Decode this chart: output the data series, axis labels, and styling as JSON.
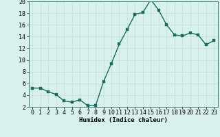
{
  "x": [
    0,
    1,
    2,
    3,
    4,
    5,
    6,
    7,
    8,
    9,
    10,
    11,
    12,
    13,
    14,
    15,
    16,
    17,
    18,
    19,
    20,
    21,
    22,
    23
  ],
  "y": [
    5.2,
    5.2,
    4.6,
    4.1,
    3.0,
    2.8,
    3.2,
    2.2,
    2.2,
    6.3,
    9.4,
    12.7,
    15.2,
    17.8,
    18.1,
    20.3,
    18.5,
    16.0,
    14.3,
    14.1,
    14.6,
    14.3,
    12.6,
    13.3
  ],
  "line_color": "#1a6b5a",
  "marker_color": "#1a6b5a",
  "bg_color": "#d8f0ee",
  "grid_color": "#c4dedb",
  "xlabel": "Humidex (Indice chaleur)",
  "ylim": [
    2,
    20
  ],
  "xlim": [
    -0.5,
    23.5
  ],
  "yticks": [
    2,
    4,
    6,
    8,
    10,
    12,
    14,
    16,
    18,
    20
  ],
  "xticks": [
    0,
    1,
    2,
    3,
    4,
    5,
    6,
    7,
    8,
    9,
    10,
    11,
    12,
    13,
    14,
    15,
    16,
    17,
    18,
    19,
    20,
    21,
    22,
    23
  ],
  "xlabel_fontsize": 6.5,
  "tick_fontsize": 6,
  "line_width": 1.0,
  "marker_size": 2.5
}
